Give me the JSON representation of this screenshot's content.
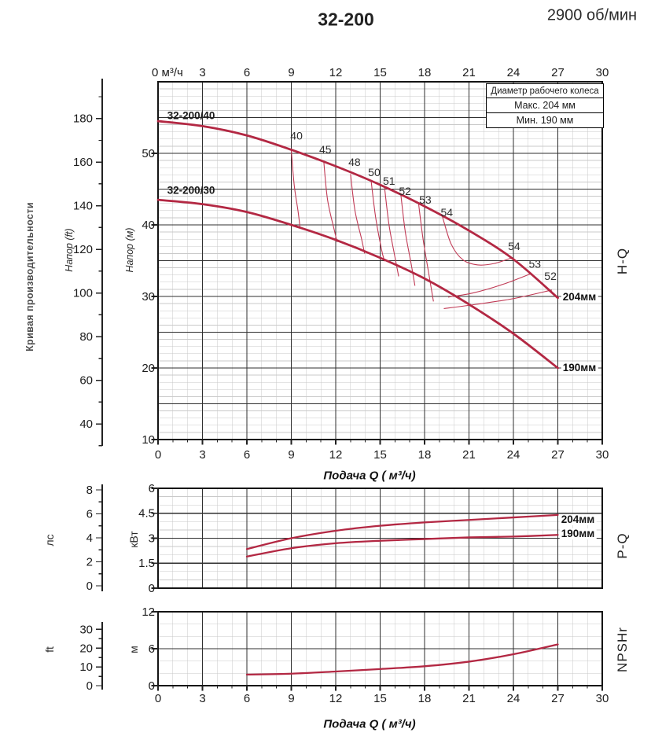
{
  "header": {
    "model": "32-200",
    "speed": "2900 об/мин"
  },
  "side_label": "Кривая производительности",
  "legend": {
    "title": "Диаметр рабочего колеса",
    "max_row": "Макс. 204 мм",
    "min_row": "Мин. 190 мм"
  },
  "colors": {
    "curve_red": "#b32843",
    "contour_red": "#c03a55",
    "grid_major": "#2f2f2f",
    "grid_minor": "#c9c9c9",
    "border": "#141414",
    "text": "#1c1c1c"
  },
  "chart_data": [
    {
      "id": "hq",
      "type": "line",
      "right_label": "H-Q",
      "x_axis": {
        "min": 0,
        "max": 30,
        "major_step": 3,
        "minor_step": 1,
        "tick_labels_top": [
          "0 м³/ч",
          "3",
          "6",
          "9",
          "12",
          "15",
          "18",
          "21",
          "24",
          "27",
          "30"
        ],
        "tick_labels_bottom": [
          "0",
          "3",
          "6",
          "9",
          "12",
          "15",
          "18",
          "21",
          "24",
          "27",
          "30"
        ],
        "xlabel": "Подача Q ( м³/ч)"
      },
      "y_axis_m": {
        "label": "Напор (м)",
        "min": 10,
        "max": 60,
        "major_step": 5,
        "minor_step": 1,
        "ticks": [
          50,
          40,
          30,
          20,
          10
        ]
      },
      "y_axis_ft": {
        "label": "Напор (ft)",
        "ticks": [
          180,
          160,
          140,
          120,
          100,
          80,
          60,
          40
        ],
        "minor_step": 10
      },
      "series": [
        {
          "name": "32-200/40",
          "end_label": "204мм",
          "points_q_m": [
            [
              0,
              54.5
            ],
            [
              3,
              53.8
            ],
            [
              6,
              52.5
            ],
            [
              9,
              50.5
            ],
            [
              12,
              48.2
            ],
            [
              15,
              45.6
            ],
            [
              18,
              42.6
            ],
            [
              21,
              39.2
            ],
            [
              24,
              35.2
            ],
            [
              27,
              29.8
            ]
          ]
        },
        {
          "name": "32-200/30",
          "end_label": "190мм",
          "points_q_m": [
            [
              0,
              43.5
            ],
            [
              3,
              42.9
            ],
            [
              6,
              41.8
            ],
            [
              9,
              40.0
            ],
            [
              12,
              37.9
            ],
            [
              15,
              35.4
            ],
            [
              18,
              32.5
            ],
            [
              21,
              28.9
            ],
            [
              24,
              24.8
            ],
            [
              27,
              20.0
            ]
          ]
        }
      ],
      "efficiency": {
        "labels": [
          {
            "text": "40",
            "at": [
              9.35,
              51.9
            ]
          },
          {
            "text": "45",
            "at": [
              11.3,
              50.0
            ]
          },
          {
            "text": "48",
            "at": [
              13.27,
              48.25
            ]
          },
          {
            "text": "50",
            "at": [
              14.6,
              46.8
            ]
          },
          {
            "text": "51",
            "at": [
              15.6,
              45.6
            ]
          },
          {
            "text": "52",
            "at": [
              16.68,
              44.2
            ]
          },
          {
            "text": "53",
            "at": [
              18.05,
              42.95
            ]
          },
          {
            "text": "54",
            "at": [
              19.5,
              41.2
            ]
          },
          {
            "text": "54",
            "at": [
              24.05,
              36.5
            ]
          },
          {
            "text": "53",
            "at": [
              25.45,
              34.0
            ]
          },
          {
            "text": "52",
            "at": [
              26.5,
              32.3
            ]
          }
        ],
        "lines": [
          {
            "eta": "40",
            "points": [
              [
                9.0,
                50.4
              ],
              [
                9.2,
                45.5
              ],
              [
                9.45,
                42.0
              ],
              [
                9.6,
                39.5
              ]
            ]
          },
          {
            "eta": "45",
            "points": [
              [
                11.2,
                48.7
              ],
              [
                11.45,
                43.5
              ],
              [
                11.9,
                39.3
              ],
              [
                12.1,
                37.6
              ]
            ]
          },
          {
            "eta": "48",
            "points": [
              [
                13.0,
                47.1
              ],
              [
                13.3,
                42.0
              ],
              [
                13.75,
                38.0
              ],
              [
                13.95,
                36.0
              ]
            ]
          },
          {
            "eta": "50",
            "points": [
              [
                14.4,
                46.0
              ],
              [
                14.7,
                41.0
              ],
              [
                15.1,
                36.5
              ],
              [
                15.3,
                34.9
              ]
            ]
          },
          {
            "eta": "51",
            "points": [
              [
                15.3,
                45.2
              ],
              [
                15.6,
                40.0
              ],
              [
                16.0,
                35.5
              ],
              [
                16.25,
                32.8
              ]
            ]
          },
          {
            "eta": "52",
            "points": [
              [
                16.4,
                44.2
              ],
              [
                16.7,
                39.0
              ],
              [
                17.1,
                34.5
              ],
              [
                17.35,
                31.5
              ]
            ]
          },
          {
            "eta": "53",
            "points": [
              [
                17.6,
                42.9
              ],
              [
                17.9,
                38.0
              ],
              [
                18.3,
                33.0
              ],
              [
                18.6,
                29.3
              ]
            ]
          },
          {
            "eta": "54",
            "points": [
              [
                19.2,
                41.2
              ],
              [
                19.8,
                37.3
              ],
              [
                20.6,
                35.1
              ],
              [
                21.6,
                34.4
              ],
              [
                22.7,
                34.6
              ],
              [
                23.9,
                35.4
              ]
            ]
          },
          {
            "eta": "53",
            "points": [
              [
                19.6,
                29.9
              ],
              [
                21.3,
                30.5
              ],
              [
                23.3,
                31.7
              ],
              [
                25.2,
                33.2
              ]
            ]
          },
          {
            "eta": "52",
            "points": [
              [
                19.3,
                28.3
              ],
              [
                21.5,
                28.9
              ],
              [
                24.0,
                29.7
              ],
              [
                26.6,
                30.9
              ]
            ]
          }
        ]
      }
    },
    {
      "id": "pq",
      "type": "line",
      "right_label": "P-Q",
      "y_axis_kw": {
        "label": "кВт",
        "min": 0,
        "max": 6,
        "major_step": 1.5,
        "minor_step": 0.5,
        "ticks": [
          6,
          4.5,
          3,
          1.5,
          0
        ]
      },
      "y_axis_hp": {
        "label": "лс",
        "ticks": [
          8,
          6,
          4,
          2,
          0
        ]
      },
      "series": [
        {
          "end_label": "204мм",
          "points_q_kw": [
            [
              6,
              2.35
            ],
            [
              9,
              3.0
            ],
            [
              12,
              3.45
            ],
            [
              15,
              3.75
            ],
            [
              18,
              3.95
            ],
            [
              21,
              4.1
            ],
            [
              24,
              4.25
            ],
            [
              27,
              4.4
            ]
          ]
        },
        {
          "end_label": "190мм",
          "points_q_kw": [
            [
              6,
              1.9
            ],
            [
              9,
              2.4
            ],
            [
              12,
              2.7
            ],
            [
              15,
              2.85
            ],
            [
              18,
              2.95
            ],
            [
              21,
              3.05
            ],
            [
              24,
              3.1
            ],
            [
              27,
              3.2
            ]
          ]
        }
      ]
    },
    {
      "id": "npshr",
      "type": "line",
      "right_label": "NPSHr",
      "x_axis": {
        "tick_labels_bottom": [
          "0",
          "3",
          "6",
          "9",
          "12",
          "15",
          "18",
          "21",
          "24",
          "27",
          "30"
        ],
        "xlabel": "Подача Q ( м³/ч)"
      },
      "y_axis_m": {
        "label": "м",
        "min": 0,
        "max": 12,
        "major_step": 6,
        "minor_step": 2,
        "ticks": [
          12,
          6,
          0
        ]
      },
      "y_axis_ft": {
        "label": "ft",
        "ticks": [
          30,
          20,
          10,
          0
        ],
        "minor_step": 5
      },
      "series": [
        {
          "points_q_m": [
            [
              6,
              1.8
            ],
            [
              9,
              1.95
            ],
            [
              12,
              2.3
            ],
            [
              15,
              2.7
            ],
            [
              18,
              3.15
            ],
            [
              21,
              3.9
            ],
            [
              24,
              5.1
            ],
            [
              27,
              6.7
            ]
          ]
        }
      ]
    }
  ]
}
